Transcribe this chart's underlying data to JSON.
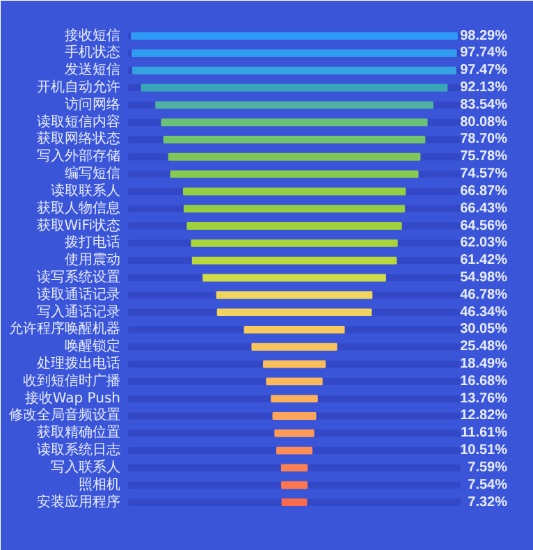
{
  "chart_data": {
    "type": "other",
    "categories": [
      "接收短信",
      "手机状态",
      "发送短信",
      "开机自动允许",
      "访问网络",
      "读取短信内容",
      "获取网络状态",
      "写入外部存储",
      "编写短信",
      "读取联系人",
      "获取人物信息",
      "获取WiFi状态",
      "拨打电话",
      "使用震动",
      "读写系统设置",
      "读取通话记录",
      "写入通话记录",
      "允许程序唤醒机器",
      "唤醒锁定",
      "处理拨出电话",
      "收到短信时广播",
      "接收Wap Push",
      "修改全局音频设置",
      "获取精确位置",
      "读取系统日志",
      "写入联系人",
      "照相机",
      "安装应用程序"
    ],
    "values": [
      98.29,
      97.74,
      97.47,
      92.13,
      83.54,
      80.08,
      78.7,
      75.78,
      74.57,
      66.87,
      66.43,
      64.56,
      62.03,
      61.42,
      54.98,
      46.78,
      46.34,
      30.05,
      25.48,
      18.49,
      16.68,
      13.76,
      12.82,
      11.61,
      10.51,
      7.59,
      7.54,
      7.32
    ],
    "value_labels": [
      "98.29%",
      "97.74%",
      "97.47%",
      "92.13%",
      "83.54%",
      "80.08%",
      "78.70%",
      "75.78%",
      "74.57%",
      "66.87%",
      "66.43%",
      "64.56%",
      "62.03%",
      "61.42%",
      "54.98%",
      "46.78%",
      "46.34%",
      "30.05%",
      "25.48%",
      "18.49%",
      "16.68%",
      "13.76%",
      "12.82%",
      "11.61%",
      "10.51%",
      "7.59%",
      "7.54%",
      "7.32%"
    ],
    "colors": [
      "#2e9af5",
      "#2f9cf0",
      "#34a3e0",
      "#3aa8b8",
      "#4db3a0",
      "#6ac17a",
      "#72c46a",
      "#80c856",
      "#88cb4e",
      "#93cf40",
      "#95cf40",
      "#9ed13c",
      "#a8d43a",
      "#b8d83c",
      "#d0db4a",
      "#f0d55c",
      "#f2d35e",
      "#f8c95c",
      "#f9c45c",
      "#fbbd5a",
      "#fbb85a",
      "#fbb05a",
      "#fca55a",
      "#fc9a58",
      "#fc8e55",
      "#fc8050",
      "#fc7650",
      "#fc6a4e"
    ]
  }
}
